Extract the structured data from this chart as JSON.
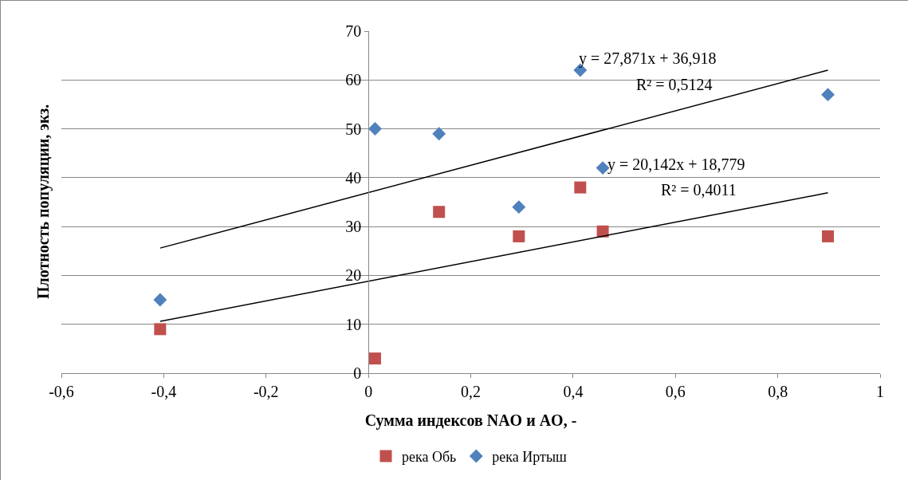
{
  "chart_data": {
    "type": "scatter",
    "xlabel": "Сумма индексов NAO и AO, -",
    "ylabel": "Плотность популяции, экз.",
    "xlim": [
      -0.6,
      1
    ],
    "xticks": [
      {
        "value": -0.6,
        "label": "-0,6"
      },
      {
        "value": -0.4,
        "label": "-0,4"
      },
      {
        "value": -0.2,
        "label": "-0,2"
      },
      0,
      {
        "value": 0.2,
        "label": "0,2"
      },
      {
        "value": 0.4,
        "label": "0,4"
      },
      {
        "value": 0.6,
        "label": "0,6"
      },
      {
        "value": 0.8,
        "label": "0,8"
      },
      1
    ],
    "ylim": [
      0,
      70
    ],
    "yticks": [
      0,
      10,
      20,
      30,
      40,
      50,
      60,
      70
    ],
    "grid": "y",
    "legend": "bottom",
    "series": [
      {
        "name": "река Обь",
        "color": "#c0504d",
        "marker": "square",
        "x": [
          -0.407,
          0.013,
          0.138,
          0.294,
          0.414,
          0.458,
          0.898
        ],
        "values": [
          9,
          3,
          33,
          28,
          38,
          29,
          28
        ]
      },
      {
        "name": "река Иртыш",
        "color": "#4f81bd",
        "marker": "diamond",
        "x": [
          -0.407,
          0.013,
          0.138,
          0.294,
          0.414,
          0.458,
          0.898
        ],
        "values": [
          15,
          50,
          49,
          34,
          62,
          42,
          57
        ]
      },
      {
        "type": "line",
        "color": "#000000",
        "marker": "none",
        "x": [
          -0.407,
          0.898
        ],
        "values": [
          25.6,
          62
        ]
      },
      {
        "type": "line",
        "color": "#000000",
        "marker": "none",
        "x": [
          -0.407,
          0.898
        ],
        "values": [
          10.6,
          36.9
        ]
      }
    ],
    "annotations": [
      "y = 27,871x + 36,918",
      "R² = 0,5124",
      "y = 20,142x + 18,779",
      "R² = 0,4011"
    ]
  }
}
